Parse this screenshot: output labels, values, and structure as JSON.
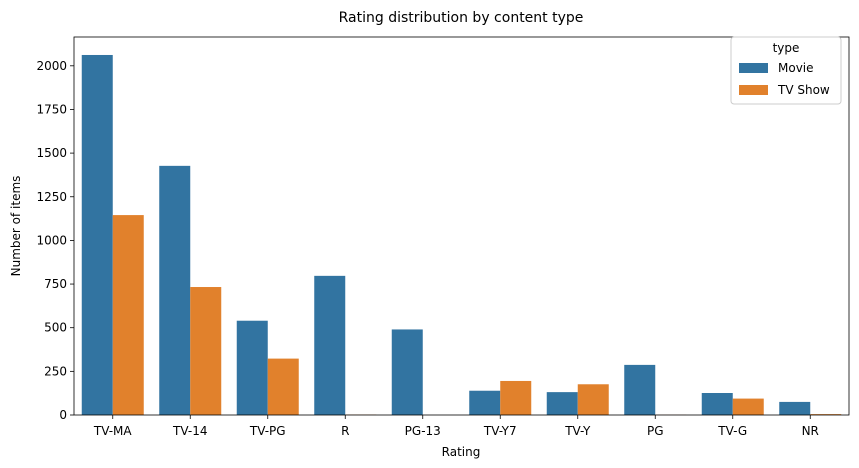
{
  "chart_data": {
    "type": "bar",
    "title": "Rating distribution by content type",
    "xlabel": "Rating",
    "ylabel": "Number of items",
    "categories": [
      "TV-MA",
      "TV-14",
      "TV-PG",
      "R",
      "PG-13",
      "TV-Y7",
      "TV-Y",
      "PG",
      "TV-G",
      "NR"
    ],
    "series": [
      {
        "name": "Movie",
        "color": "#3274a1",
        "values": [
          2062,
          1427,
          540,
          797,
          490,
          139,
          131,
          287,
          126,
          75
        ]
      },
      {
        "name": "TV Show",
        "color": "#e1812c",
        "values": [
          1145,
          733,
          323,
          2,
          0,
          195,
          176,
          1,
          94,
          5
        ]
      }
    ],
    "ylim": [
      0,
      2165
    ],
    "yticks": [
      0,
      250,
      500,
      750,
      1000,
      1250,
      1500,
      1750,
      2000
    ],
    "legend": {
      "title": "type",
      "placement": "top-right"
    },
    "grid": false
  }
}
